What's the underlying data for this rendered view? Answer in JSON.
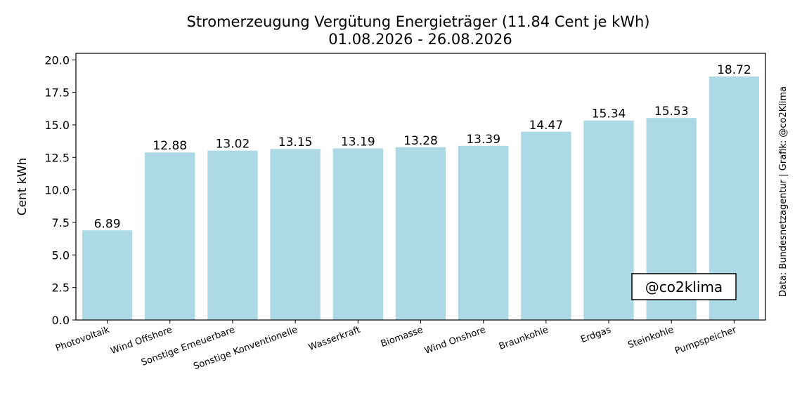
{
  "chart_data": {
    "type": "bar",
    "title": "Stromerzeugung Vergütung Energieträger (11.84 Cent je kWh)",
    "subtitle": "01.08.2026 - 26.08.2026",
    "xlabel": "",
    "ylabel": "Cent kWh",
    "ylim": [
      0,
      20.5
    ],
    "yticks": [
      "0.0",
      "2.5",
      "5.0",
      "7.5",
      "10.0",
      "12.5",
      "15.0",
      "17.5",
      "20.0"
    ],
    "categories": [
      "Photovoltaik",
      "Wind Offshore",
      "Sonstige Erneuerbare",
      "Sonstige Konventionelle",
      "Wasserkraft",
      "Biomasse",
      "Wind Onshore",
      "Braunkohle",
      "Erdgas",
      "Steinkohle",
      "Pumpspeicher"
    ],
    "values": [
      6.89,
      12.88,
      13.02,
      13.15,
      13.19,
      13.28,
      13.39,
      14.47,
      15.34,
      15.53,
      18.72
    ],
    "value_labels": [
      "6.89",
      "12.88",
      "13.02",
      "13.15",
      "13.19",
      "13.28",
      "13.39",
      "14.47",
      "15.34",
      "15.53",
      "18.72"
    ],
    "bar_color": "#add8e6",
    "grid": false,
    "watermark": "@co2klima",
    "credit": "Data: Bundesnetzagentur | Grafik: @co2Klima"
  }
}
